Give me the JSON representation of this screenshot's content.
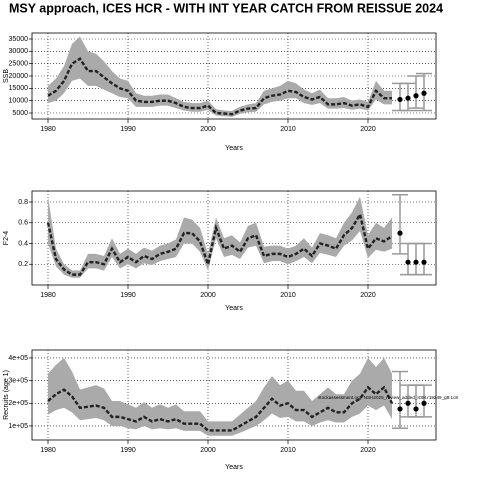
{
  "title": "MSY approach, ICES HCR - WITH INT YEAR CATCH FROM REISSUE 2024",
  "chart_data": [
    {
      "type": "line",
      "ylabel": "SSB",
      "xlabel": "Years",
      "xlim": [
        1978,
        2028.5
      ],
      "xticks": [
        1980,
        1990,
        2000,
        2010,
        2020
      ],
      "ylim": [
        2570,
        37430
      ],
      "yticks": [
        5000,
        10000,
        15000,
        20000,
        25000,
        30000,
        35000
      ],
      "grid": true,
      "color": "#222222",
      "band_color": "#aaaaaa",
      "forecast_color": "#999999",
      "x": [
        1980,
        1981,
        1982,
        1983,
        1984,
        1985,
        1986,
        1987,
        1988,
        1989,
        1990,
        1991,
        1992,
        1993,
        1994,
        1995,
        1996,
        1997,
        1998,
        1999,
        2000,
        2001,
        2002,
        2003,
        2004,
        2005,
        2006,
        2007,
        2008,
        2009,
        2010,
        2011,
        2012,
        2013,
        2014,
        2015,
        2016,
        2017,
        2018,
        2019,
        2020,
        2021,
        2022,
        2023
      ],
      "values": [
        12000,
        14000,
        18000,
        25000,
        27000,
        22000,
        22000,
        19500,
        17000,
        15000,
        14000,
        10000,
        9500,
        9500,
        10000,
        10000,
        9000,
        7500,
        7000,
        7000,
        8000,
        5000,
        4800,
        4500,
        6000,
        6800,
        7000,
        11000,
        12000,
        12500,
        14000,
        13500,
        11500,
        10500,
        11500,
        8500,
        8500,
        9000,
        8000,
        8500,
        7500,
        14000,
        11000,
        11000
      ],
      "upper": [
        16000,
        19000,
        24000,
        33000,
        36000,
        30000,
        29000,
        26000,
        22000,
        19000,
        18000,
        13000,
        12000,
        12000,
        12500,
        12500,
        11000,
        9500,
        9000,
        9000,
        10000,
        6500,
        6000,
        5800,
        7500,
        8500,
        9000,
        14000,
        15000,
        16000,
        18000,
        17000,
        14500,
        13000,
        14500,
        11000,
        11000,
        11500,
        10000,
        10500,
        9500,
        18000,
        14000,
        14000
      ],
      "lower": [
        9000,
        10000,
        13000,
        18000,
        19000,
        16000,
        16000,
        14500,
        13000,
        11500,
        11000,
        7500,
        7500,
        7500,
        8000,
        8000,
        7000,
        6000,
        5500,
        5500,
        6200,
        4000,
        3700,
        3500,
        4700,
        5300,
        5500,
        8500,
        9500,
        10000,
        11000,
        11000,
        9000,
        8300,
        9000,
        6800,
        6800,
        7000,
        6300,
        6800,
        6000,
        10500,
        8500,
        8500
      ],
      "forecast_x": [
        2024,
        2025,
        2026,
        2027
      ],
      "forecast_values": [
        10500,
        11000,
        12000,
        13000
      ],
      "forecast_lower": [
        6000,
        6000,
        7000,
        6000
      ],
      "forecast_upper": [
        17000,
        17000,
        20000,
        21000
      ]
    },
    {
      "type": "line",
      "ylabel": "F2-4",
      "xlabel": "Years",
      "xlim": [
        1978,
        2028.5
      ],
      "xticks": [
        1980,
        1990,
        2000,
        2010,
        2020
      ],
      "ylim": [
        0,
        0.906
      ],
      "yticks": [
        0.2,
        0.4,
        0.6,
        0.8
      ],
      "grid": true,
      "color": "#222222",
      "band_color": "#aaaaaa",
      "forecast_color": "#999999",
      "x": [
        1980,
        1981,
        1982,
        1983,
        1984,
        1985,
        1986,
        1987,
        1988,
        1989,
        1990,
        1991,
        1992,
        1993,
        1994,
        1995,
        1996,
        1997,
        1998,
        1999,
        2000,
        2001,
        2002,
        2003,
        2004,
        2005,
        2006,
        2007,
        2008,
        2009,
        2010,
        2011,
        2012,
        2013,
        2014,
        2015,
        2016,
        2017,
        2018,
        2019,
        2020,
        2021,
        2022,
        2023
      ],
      "values": [
        0.6,
        0.25,
        0.15,
        0.1,
        0.1,
        0.22,
        0.22,
        0.2,
        0.35,
        0.22,
        0.27,
        0.22,
        0.28,
        0.25,
        0.3,
        0.32,
        0.35,
        0.5,
        0.5,
        0.42,
        0.2,
        0.55,
        0.35,
        0.38,
        0.32,
        0.45,
        0.48,
        0.28,
        0.3,
        0.3,
        0.27,
        0.3,
        0.35,
        0.28,
        0.4,
        0.38,
        0.35,
        0.48,
        0.55,
        0.68,
        0.35,
        0.45,
        0.42,
        0.47
      ],
      "upper": [
        0.85,
        0.35,
        0.2,
        0.14,
        0.14,
        0.3,
        0.3,
        0.28,
        0.45,
        0.3,
        0.35,
        0.3,
        0.36,
        0.33,
        0.38,
        0.4,
        0.44,
        0.65,
        0.63,
        0.55,
        0.3,
        0.65,
        0.45,
        0.48,
        0.41,
        0.57,
        0.6,
        0.37,
        0.38,
        0.38,
        0.35,
        0.38,
        0.45,
        0.36,
        0.5,
        0.48,
        0.45,
        0.6,
        0.7,
        0.85,
        0.48,
        0.6,
        0.55,
        0.65
      ],
      "lower": [
        0.4,
        0.18,
        0.1,
        0.07,
        0.07,
        0.16,
        0.16,
        0.14,
        0.27,
        0.16,
        0.2,
        0.16,
        0.21,
        0.19,
        0.23,
        0.25,
        0.27,
        0.4,
        0.4,
        0.32,
        0.14,
        0.45,
        0.27,
        0.29,
        0.25,
        0.36,
        0.38,
        0.21,
        0.23,
        0.23,
        0.2,
        0.23,
        0.27,
        0.21,
        0.31,
        0.29,
        0.27,
        0.38,
        0.43,
        0.52,
        0.26,
        0.34,
        0.32,
        0.35
      ],
      "forecast_x": [
        2024,
        2025,
        2026,
        2027
      ],
      "forecast_values": [
        0.5,
        0.22,
        0.22,
        0.22
      ],
      "forecast_lower": [
        0.3,
        0.1,
        0.1,
        0.1
      ],
      "forecast_upper": [
        0.87,
        0.4,
        0.4,
        0.4
      ]
    },
    {
      "type": "line",
      "ylabel": "Recruits (age 1)",
      "xlabel": "Years",
      "annotation": "stockassessment.org, NSH2025_review_added_IOM.r19249_g8:1c8",
      "xlim": [
        1978,
        2028.5
      ],
      "xticks": [
        1980,
        1990,
        2000,
        2010,
        2020
      ],
      "ylim": [
        38000,
        435000
      ],
      "yticks": [
        {
          "value": 100000,
          "label": "1e+05"
        },
        {
          "value": 200000,
          "label": "2e+05"
        },
        {
          "value": 300000,
          "label": "3e+05"
        },
        {
          "value": 400000,
          "label": "4e+05"
        }
      ],
      "grid": true,
      "color": "#222222",
      "band_color": "#aaaaaa",
      "forecast_color": "#999999",
      "x": [
        1980,
        1981,
        1982,
        1983,
        1984,
        1985,
        1986,
        1987,
        1988,
        1989,
        1990,
        1991,
        1992,
        1993,
        1994,
        1995,
        1996,
        1997,
        1998,
        1999,
        2000,
        2001,
        2002,
        2003,
        2004,
        2005,
        2006,
        2007,
        2008,
        2009,
        2010,
        2011,
        2012,
        2013,
        2014,
        2015,
        2016,
        2017,
        2018,
        2019,
        2020,
        2021,
        2022,
        2023
      ],
      "values": [
        210000,
        240000,
        260000,
        230000,
        180000,
        185000,
        190000,
        180000,
        140000,
        140000,
        130000,
        120000,
        140000,
        120000,
        130000,
        120000,
        130000,
        110000,
        110000,
        110000,
        80000,
        80000,
        80000,
        80000,
        100000,
        120000,
        140000,
        180000,
        220000,
        190000,
        200000,
        170000,
        170000,
        140000,
        160000,
        180000,
        160000,
        160000,
        200000,
        220000,
        270000,
        240000,
        270000,
        200000
      ],
      "upper": [
        330000,
        370000,
        400000,
        340000,
        260000,
        270000,
        280000,
        265000,
        210000,
        210000,
        195000,
        180000,
        205000,
        180000,
        195000,
        180000,
        195000,
        165000,
        165000,
        165000,
        120000,
        120000,
        120000,
        120000,
        150000,
        180000,
        210000,
        270000,
        320000,
        280000,
        300000,
        255000,
        255000,
        210000,
        240000,
        270000,
        240000,
        240000,
        300000,
        330000,
        400000,
        360000,
        400000,
        330000
      ],
      "lower": [
        150000,
        170000,
        180000,
        160000,
        125000,
        130000,
        135000,
        125000,
        100000,
        100000,
        90000,
        85000,
        100000,
        85000,
        90000,
        85000,
        90000,
        78000,
        78000,
        78000,
        57000,
        57000,
        57000,
        57000,
        70000,
        85000,
        100000,
        125000,
        155000,
        135000,
        140000,
        120000,
        120000,
        100000,
        115000,
        125000,
        115000,
        115000,
        140000,
        155000,
        190000,
        170000,
        190000,
        130000
      ],
      "forecast_x": [
        2024,
        2025,
        2026,
        2027
      ],
      "forecast_values": [
        175000,
        200000,
        175000,
        200000
      ],
      "forecast_lower": [
        90000,
        140000,
        140000,
        140000
      ],
      "forecast_upper": [
        340000,
        280000,
        280000,
        280000
      ]
    }
  ]
}
